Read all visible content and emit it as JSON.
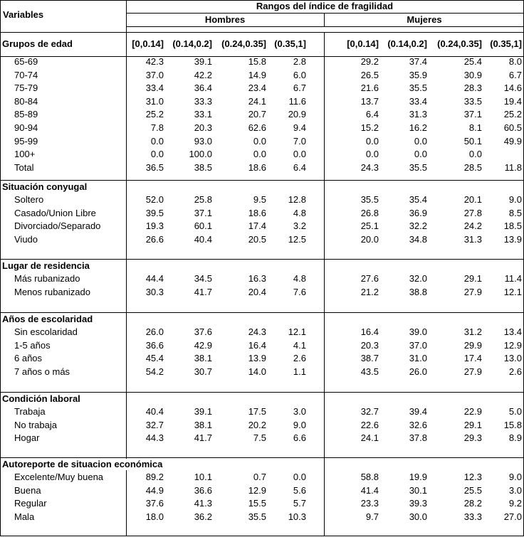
{
  "header": {
    "variables_label": "Variables",
    "group_title": "Rangos del índice de fragilidad",
    "hombres_label": "Hombres",
    "mujeres_label": "Mujeres",
    "ranges": [
      "[0,0.14]",
      "(0.14,0.2]",
      "(0.24,0.35]",
      "(0.35,1]"
    ]
  },
  "sections": [
    {
      "title": "Grupos de edad",
      "rows": [
        {
          "label": "65-69",
          "hombres": [
            "42.3",
            "39.1",
            "15.8",
            "2.8"
          ],
          "mujeres": [
            "29.2",
            "37.4",
            "25.4",
            "8.0"
          ]
        },
        {
          "label": "70-74",
          "hombres": [
            "37.0",
            "42.2",
            "14.9",
            "6.0"
          ],
          "mujeres": [
            "26.5",
            "35.9",
            "30.9",
            "6.7"
          ]
        },
        {
          "label": "75-79",
          "hombres": [
            "33.4",
            "36.4",
            "23.4",
            "6.7"
          ],
          "mujeres": [
            "21.6",
            "35.5",
            "28.3",
            "14.6"
          ]
        },
        {
          "label": "80-84",
          "hombres": [
            "31.0",
            "33.3",
            "24.1",
            "11.6"
          ],
          "mujeres": [
            "13.7",
            "33.4",
            "33.5",
            "19.4"
          ]
        },
        {
          "label": "85-89",
          "hombres": [
            "25.2",
            "33.1",
            "20.7",
            "20.9"
          ],
          "mujeres": [
            "6.4",
            "31.3",
            "37.1",
            "25.2"
          ]
        },
        {
          "label": "90-94",
          "hombres": [
            "7.8",
            "20.3",
            "62.6",
            "9.4"
          ],
          "mujeres": [
            "15.2",
            "16.2",
            "8.1",
            "60.5"
          ]
        },
        {
          "label": "95-99",
          "hombres": [
            "0.0",
            "93.0",
            "0.0",
            "7.0"
          ],
          "mujeres": [
            "0.0",
            "0.0",
            "50.1",
            "49.9"
          ]
        },
        {
          "label": "100+",
          "hombres": [
            "0.0",
            "100.0",
            "0.0",
            "0.0"
          ],
          "mujeres": [
            "0.0",
            "0.0",
            "0.0",
            ""
          ]
        },
        {
          "label": "Total",
          "hombres": [
            "36.5",
            "38.5",
            "18.6",
            "6.4"
          ],
          "mujeres": [
            "24.3",
            "35.5",
            "28.5",
            "11.8"
          ]
        }
      ]
    },
    {
      "title": "Situación conyugal",
      "rows": [
        {
          "label": "Soltero",
          "hombres": [
            "52.0",
            "25.8",
            "9.5",
            "12.8"
          ],
          "mujeres": [
            "35.5",
            "35.4",
            "20.1",
            "9.0"
          ]
        },
        {
          "label": "Casado/Union Libre",
          "hombres": [
            "39.5",
            "37.1",
            "18.6",
            "4.8"
          ],
          "mujeres": [
            "26.8",
            "36.9",
            "27.8",
            "8.5"
          ]
        },
        {
          "label": "Divorciado/Separado",
          "hombres": [
            "19.3",
            "60.1",
            "17.4",
            "3.2"
          ],
          "mujeres": [
            "25.1",
            "32.2",
            "24.2",
            "18.5"
          ]
        },
        {
          "label": "Viudo",
          "hombres": [
            "26.6",
            "40.4",
            "20.5",
            "12.5"
          ],
          "mujeres": [
            "20.0",
            "34.8",
            "31.3",
            "13.9"
          ]
        }
      ]
    },
    {
      "title": "Lugar de residencia",
      "rows": [
        {
          "label": "Más rubanizado",
          "hombres": [
            "44.4",
            "34.5",
            "16.3",
            "4.8"
          ],
          "mujeres": [
            "27.6",
            "32.0",
            "29.1",
            "11.4"
          ]
        },
        {
          "label": "Menos rubanizado",
          "hombres": [
            "30.3",
            "41.7",
            "20.4",
            "7.6"
          ],
          "mujeres": [
            "21.2",
            "38.8",
            "27.9",
            "12.1"
          ]
        }
      ]
    },
    {
      "title": "Años de escolaridad",
      "rows": [
        {
          "label": "Sin escolaridad",
          "hombres": [
            "26.0",
            "37.6",
            "24.3",
            "12.1"
          ],
          "mujeres": [
            "16.4",
            "39.0",
            "31.2",
            "13.4"
          ]
        },
        {
          "label": "1-5 años",
          "hombres": [
            "36.6",
            "42.9",
            "16.4",
            "4.1"
          ],
          "mujeres": [
            "20.3",
            "37.0",
            "29.9",
            "12.9"
          ]
        },
        {
          "label": "6 años",
          "hombres": [
            "45.4",
            "38.1",
            "13.9",
            "2.6"
          ],
          "mujeres": [
            "38.7",
            "31.0",
            "17.4",
            "13.0"
          ]
        },
        {
          "label": "7 años o más",
          "hombres": [
            "54.2",
            "30.7",
            "14.0",
            "1.1"
          ],
          "mujeres": [
            "43.5",
            "26.0",
            "27.9",
            "2.6"
          ]
        }
      ]
    },
    {
      "title": "Condición laboral",
      "rows": [
        {
          "label": "Trabaja",
          "hombres": [
            "40.4",
            "39.1",
            "17.5",
            "3.0"
          ],
          "mujeres": [
            "32.7",
            "39.4",
            "22.9",
            "5.0"
          ]
        },
        {
          "label": "No trabaja",
          "hombres": [
            "32.7",
            "38.1",
            "20.2",
            "9.0"
          ],
          "mujeres": [
            "22.6",
            "32.6",
            "29.1",
            "15.8"
          ]
        },
        {
          "label": "Hogar",
          "hombres": [
            "44.3",
            "41.7",
            "7.5",
            "6.6"
          ],
          "mujeres": [
            "24.1",
            "37.8",
            "29.3",
            "8.9"
          ]
        }
      ]
    },
    {
      "title": "Autoreporte de situacion económica",
      "rows": [
        {
          "label": "Excelente/Muy buena",
          "hombres": [
            "89.2",
            "10.1",
            "0.7",
            "0.0"
          ],
          "mujeres": [
            "58.8",
            "19.9",
            "12.3",
            "9.0"
          ]
        },
        {
          "label": "Buena",
          "hombres": [
            "44.9",
            "36.6",
            "12.9",
            "5.6"
          ],
          "mujeres": [
            "41.4",
            "30.1",
            "25.5",
            "3.0"
          ]
        },
        {
          "label": "Regular",
          "hombres": [
            "37.6",
            "41.3",
            "15.5",
            "5.7"
          ],
          "mujeres": [
            "23.3",
            "39.3",
            "28.2",
            "9.2"
          ]
        },
        {
          "label": "Mala",
          "hombres": [
            "18.0",
            "36.2",
            "35.5",
            "10.3"
          ],
          "mujeres": [
            "9.7",
            "30.0",
            "33.3",
            "27.0"
          ]
        }
      ]
    }
  ]
}
